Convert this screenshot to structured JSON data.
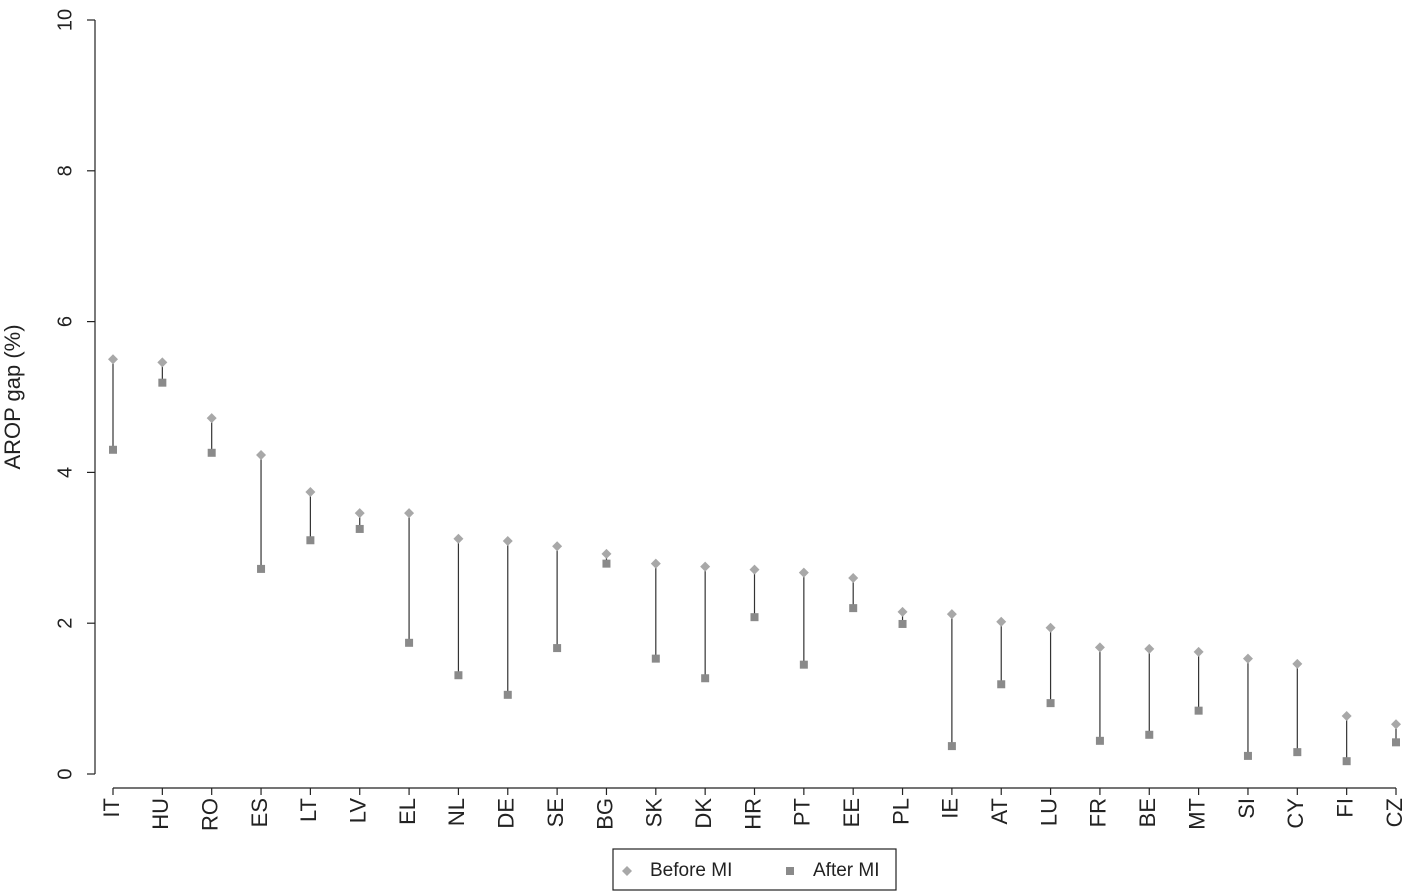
{
  "chart_data": {
    "type": "dumbbell",
    "y_label": "AROP gap (%)",
    "categories": [
      "IT",
      "HU",
      "RO",
      "ES",
      "LT",
      "LV",
      "EL",
      "NL",
      "DE",
      "SE",
      "BG",
      "SK",
      "DK",
      "HR",
      "PT",
      "EE",
      "PL",
      "IE",
      "AT",
      "LU",
      "FR",
      "BE",
      "MT",
      "SI",
      "CY",
      "FI",
      "CZ"
    ],
    "series": [
      {
        "name": "Before MI",
        "color": "#a8a8a8",
        "marker": "diamond",
        "values": [
          5.5,
          5.46,
          4.72,
          4.23,
          3.74,
          3.46,
          3.46,
          3.12,
          3.09,
          3.02,
          2.92,
          2.79,
          2.75,
          2.71,
          2.67,
          2.6,
          2.15,
          2.12,
          2.02,
          1.94,
          1.68,
          1.66,
          1.62,
          1.53,
          1.46,
          0.77,
          0.66
        ]
      },
      {
        "name": "After MI",
        "color": "#8a8a8a",
        "marker": "square",
        "values": [
          4.3,
          5.19,
          4.26,
          2.72,
          3.1,
          3.25,
          1.74,
          1.31,
          1.05,
          1.67,
          2.79,
          1.53,
          1.27,
          2.08,
          1.45,
          2.2,
          1.99,
          0.37,
          1.19,
          0.94,
          0.44,
          0.52,
          0.84,
          0.24,
          0.29,
          0.17,
          0.42
        ]
      }
    ],
    "connector_color": "#333333",
    "ylim": [
      0,
      10
    ],
    "yticks": [
      0,
      2,
      4,
      6,
      8,
      10
    ],
    "grid": false
  }
}
